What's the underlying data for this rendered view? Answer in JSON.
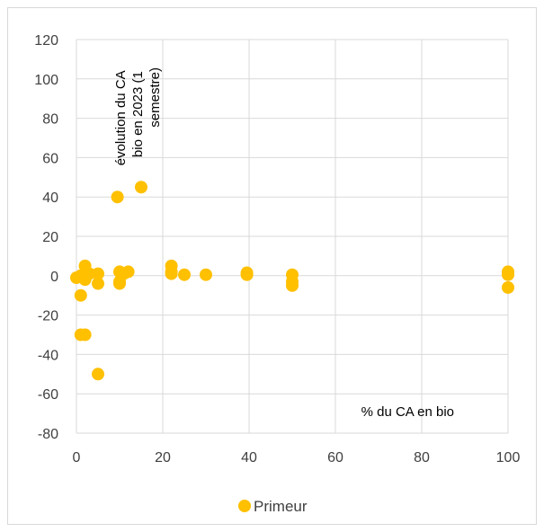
{
  "chart_data": {
    "type": "scatter",
    "title": "",
    "xlabel": "",
    "ylabel": "",
    "xlim": [
      0,
      100
    ],
    "ylim": [
      -80,
      120
    ],
    "x_ticks": [
      "0",
      "20",
      "40",
      "60",
      "80",
      "100"
    ],
    "y_ticks": [
      "120",
      "100",
      "80",
      "60",
      "40",
      "20",
      "0",
      "-20",
      "-40",
      "-60",
      "-80"
    ],
    "grid": "horizontal",
    "legend_position": "bottom",
    "annotations": {
      "y_axis_title_lines": [
        "évolution du CA",
        "bio en 2023 (1",
        "semestre)"
      ],
      "x_axis_title": "% du CA en bio"
    },
    "series": [
      {
        "name": "Primeur",
        "color": "#FFC000",
        "points": [
          [
            0,
            -1
          ],
          [
            1,
            -10
          ],
          [
            1,
            -30
          ],
          [
            1,
            0
          ],
          [
            2,
            5
          ],
          [
            2,
            1
          ],
          [
            2,
            -2
          ],
          [
            2,
            -30
          ],
          [
            3,
            1
          ],
          [
            5,
            1
          ],
          [
            5,
            -4
          ],
          [
            5,
            -50
          ],
          [
            9.5,
            40
          ],
          [
            10,
            -3
          ],
          [
            10,
            2
          ],
          [
            10,
            -4
          ],
          [
            11,
            1
          ],
          [
            12,
            2
          ],
          [
            15,
            45
          ],
          [
            22,
            5
          ],
          [
            22,
            2
          ],
          [
            22,
            1
          ],
          [
            25,
            0.5
          ],
          [
            30,
            0.5
          ],
          [
            39.5,
            1.5
          ],
          [
            39.5,
            0.5
          ],
          [
            50,
            0.5
          ],
          [
            50,
            -3
          ],
          [
            50,
            -5
          ],
          [
            100,
            2
          ],
          [
            100,
            0.5
          ],
          [
            100,
            -6
          ]
        ]
      }
    ]
  }
}
